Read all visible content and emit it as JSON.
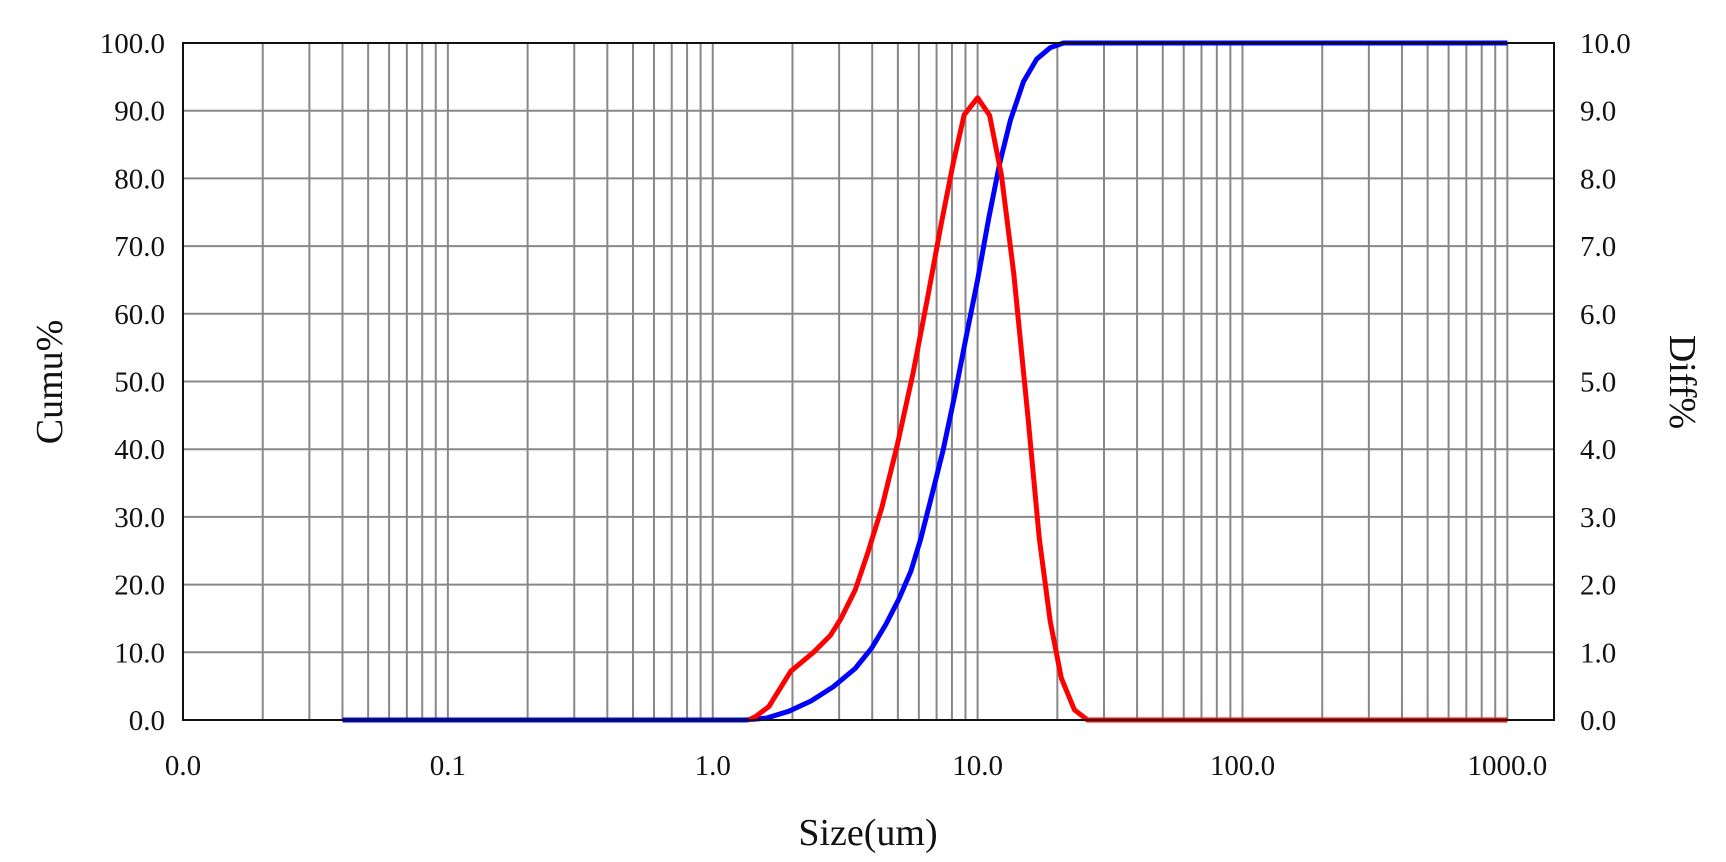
{
  "chart_data": {
    "type": "line",
    "title": "",
    "xlabel": "Size(um)",
    "ylabel": "Cumu%",
    "y2label": "Diff%",
    "xscale": "log",
    "xlim": [
      0.01,
      1500
    ],
    "ylim": [
      0,
      100
    ],
    "y2lim": [
      0,
      10
    ],
    "grid": true,
    "x_ticks": [
      {
        "value": 0.01,
        "label": "0.0"
      },
      {
        "value": 0.1,
        "label": "0.1"
      },
      {
        "value": 1,
        "label": "1.0"
      },
      {
        "value": 10,
        "label": "10.0"
      },
      {
        "value": 100,
        "label": "100.0"
      },
      {
        "value": 1000,
        "label": "1000.0"
      }
    ],
    "y_ticks": [
      "0.0",
      "10.0",
      "20.0",
      "30.0",
      "40.0",
      "50.0",
      "60.0",
      "70.0",
      "80.0",
      "90.0",
      "100.0"
    ],
    "y2_ticks": [
      "0.0",
      "1.0",
      "2.0",
      "3.0",
      "4.0",
      "5.0",
      "6.0",
      "7.0",
      "8.0",
      "9.0",
      "10.0"
    ],
    "series": [
      {
        "name": "Cumu",
        "axis": "left",
        "color": "#0000ff",
        "x": [
          0.04,
          1.33,
          1.6,
          1.94,
          2.35,
          2.85,
          3.45,
          3.98,
          4.5,
          5.05,
          5.6,
          6.1,
          6.7,
          7.4,
          8.2,
          9.0,
          10.0,
          11.0,
          12.1,
          13.3,
          14.9,
          16.7,
          18.8,
          21.1,
          1000
        ],
        "y": [
          0,
          0,
          0.3,
          1.3,
          2.8,
          4.9,
          7.6,
          10.6,
          14.1,
          17.9,
          22.0,
          26.8,
          33.0,
          39.8,
          48.0,
          56.1,
          65.0,
          74.0,
          82.1,
          88.6,
          94.3,
          97.6,
          99.3,
          100,
          100
        ]
      },
      {
        "name": "Diff",
        "axis": "right",
        "color": "#ff0000",
        "x": [
          1.37,
          1.45,
          1.63,
          1.97,
          2.4,
          2.78,
          3.05,
          3.45,
          3.85,
          4.35,
          4.98,
          5.7,
          6.47,
          7.28,
          8.1,
          8.9,
          10.0,
          11.1,
          12.3,
          13.7,
          15.5,
          17.1,
          18.8,
          20.7,
          23.2,
          26.0,
          1000
        ],
        "y": [
          0,
          0.05,
          0.2,
          0.72,
          1.0,
          1.25,
          1.5,
          1.92,
          2.47,
          3.14,
          4.07,
          5.12,
          6.23,
          7.32,
          8.24,
          8.94,
          9.19,
          8.93,
          8.05,
          6.59,
          4.47,
          2.68,
          1.46,
          0.62,
          0.15,
          0,
          0
        ]
      }
    ]
  }
}
